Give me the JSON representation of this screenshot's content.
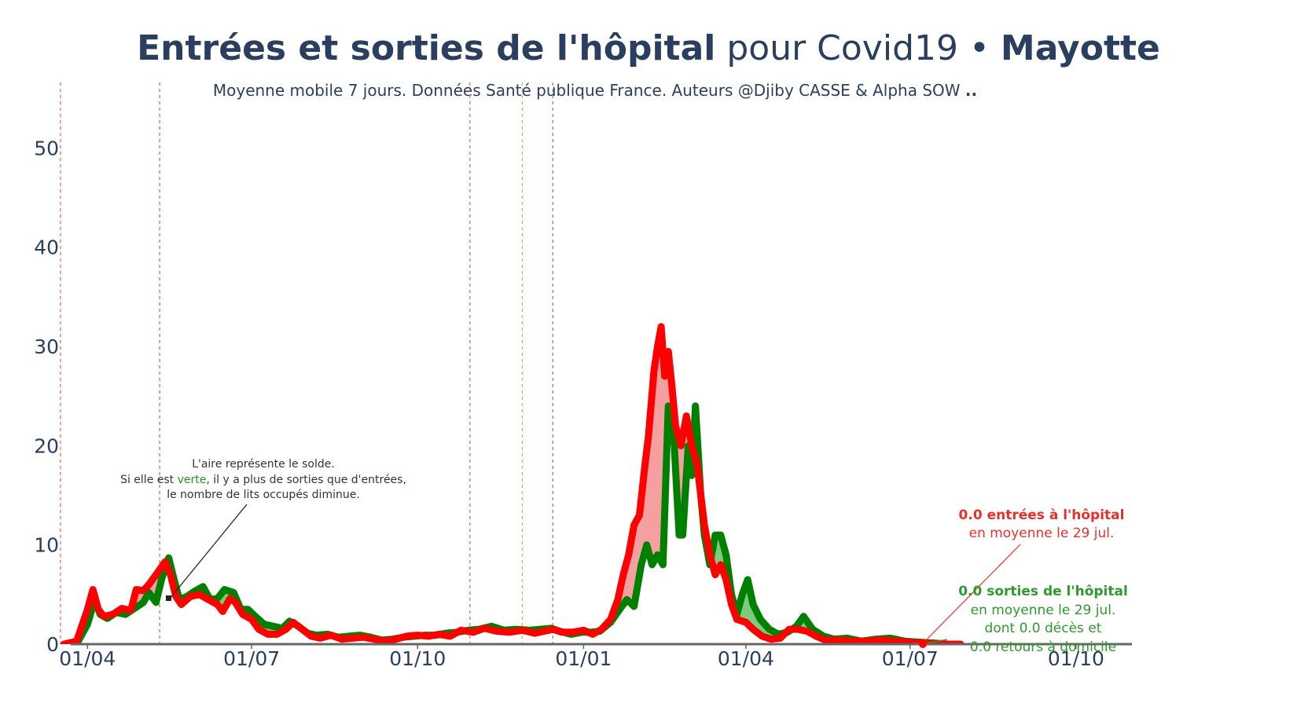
{
  "title": {
    "part1": "Entrées et sorties de l'hôpital",
    "part2": " pour Covid19 • ",
    "part3": "Mayotte"
  },
  "subtitle": {
    "main": "Moyenne mobile 7 jours. Données Santé publique France. Auteurs @Djiby CASSE & Alpha SOW ",
    "suffix": ".."
  },
  "annotation_area": {
    "line1": "L'aire représente le solde.",
    "line2_pre": "Si elle est ",
    "line2_green": "verte",
    "line2_post": ", il y a plus de sorties que d'entrées,",
    "line3": "le nombre de lits occupés diminue."
  },
  "annotation_entries": {
    "bold": "0.0 entrées à l'hôpital",
    "line2": "en moyenne le 29 jul."
  },
  "annotation_exits": {
    "bold": "0.0 sorties de l'hôpital",
    "line2": "en moyenne le 29 jul.",
    "line3": "dont 0.0 décès et",
    "line4": "0.0 retours à domicile"
  },
  "colors": {
    "entries": "#ff0000",
    "exits": "#008000",
    "area_positive": "#f4a0a0",
    "area_negative": "#7ecb7e",
    "text": "#2a3f5f",
    "vline_red": "#e06060",
    "vline_green": "#50a050",
    "vline_orange": "#f0a040"
  },
  "chart_data": {
    "type": "line",
    "x_start": "2020-03-19",
    "x_end": "2021-07-29",
    "x_ticks": [
      {
        "date": "2020-04-01",
        "label": "01/04"
      },
      {
        "date": "2020-07-01",
        "label": "01/07"
      },
      {
        "date": "2020-10-01",
        "label": "01/10"
      },
      {
        "date": "2021-01-01",
        "label": "01/01"
      },
      {
        "date": "2021-04-01",
        "label": "01/04"
      },
      {
        "date": "2021-07-01",
        "label": "01/07"
      },
      {
        "date": "2021-10-01",
        "label": "01/10"
      }
    ],
    "y_ticks": [
      0,
      10,
      20,
      30,
      40,
      50
    ],
    "ylim": [
      0,
      57
    ],
    "xlim": [
      "2020-03-14",
      "2021-11-01"
    ],
    "vertical_lines": [
      {
        "date": "2020-03-17",
        "color": "red"
      },
      {
        "date": "2020-05-11",
        "color": "green"
      },
      {
        "date": "2020-10-30",
        "color": "red"
      },
      {
        "date": "2020-11-28",
        "color": "orange"
      },
      {
        "date": "2020-12-15",
        "color": "green"
      }
    ],
    "series": [
      {
        "name": "entrées à l'hôpital",
        "points": [
          [
            "2020-03-19",
            0
          ],
          [
            "2020-03-26",
            0.3
          ],
          [
            "2020-04-01",
            3.5
          ],
          [
            "2020-04-04",
            5.5
          ],
          [
            "2020-04-07",
            3.5
          ],
          [
            "2020-04-10",
            2.8
          ],
          [
            "2020-04-15",
            3
          ],
          [
            "2020-04-20",
            3.6
          ],
          [
            "2020-04-25",
            3.4
          ],
          [
            "2020-04-28",
            5.5
          ],
          [
            "2020-05-02",
            5.4
          ],
          [
            "2020-05-05",
            6
          ],
          [
            "2020-05-09",
            7
          ],
          [
            "2020-05-14",
            8.3
          ],
          [
            "2020-05-17",
            7
          ],
          [
            "2020-05-20",
            4.8
          ],
          [
            "2020-05-23",
            4
          ],
          [
            "2020-05-28",
            4.8
          ],
          [
            "2020-06-02",
            5
          ],
          [
            "2020-06-07",
            4.5
          ],
          [
            "2020-06-12",
            4
          ],
          [
            "2020-06-15",
            3.3
          ],
          [
            "2020-06-19",
            4.6
          ],
          [
            "2020-06-22",
            4.2
          ],
          [
            "2020-06-26",
            3
          ],
          [
            "2020-07-01",
            2.5
          ],
          [
            "2020-07-05",
            1.5
          ],
          [
            "2020-07-10",
            1
          ],
          [
            "2020-07-15",
            1
          ],
          [
            "2020-07-20",
            1.5
          ],
          [
            "2020-07-24",
            2.2
          ],
          [
            "2020-07-29",
            1.5
          ],
          [
            "2020-08-03",
            0.8
          ],
          [
            "2020-08-08",
            0.6
          ],
          [
            "2020-08-14",
            0.9
          ],
          [
            "2020-08-20",
            0.5
          ],
          [
            "2020-08-26",
            0.6
          ],
          [
            "2020-09-01",
            0.7
          ],
          [
            "2020-09-07",
            0.5
          ],
          [
            "2020-09-13",
            0.3
          ],
          [
            "2020-09-19",
            0.5
          ],
          [
            "2020-09-25",
            0.8
          ],
          [
            "2020-10-01",
            0.9
          ],
          [
            "2020-10-07",
            0.8
          ],
          [
            "2020-10-13",
            1
          ],
          [
            "2020-10-19",
            0.8
          ],
          [
            "2020-10-25",
            1.4
          ],
          [
            "2020-11-01",
            1.2
          ],
          [
            "2020-11-07",
            1.6
          ],
          [
            "2020-11-14",
            1.3
          ],
          [
            "2020-11-21",
            1.2
          ],
          [
            "2020-11-28",
            1.4
          ],
          [
            "2020-12-05",
            1.1
          ],
          [
            "2020-12-10",
            1.3
          ],
          [
            "2020-12-15",
            1.5
          ],
          [
            "2020-12-20",
            1.2
          ],
          [
            "2020-12-26",
            1.2
          ],
          [
            "2021-01-01",
            1.4
          ],
          [
            "2021-01-06",
            1
          ],
          [
            "2021-01-11",
            1.5
          ],
          [
            "2021-01-16",
            2.5
          ],
          [
            "2021-01-20",
            4.5
          ],
          [
            "2021-01-23",
            7
          ],
          [
            "2021-01-26",
            9
          ],
          [
            "2021-01-29",
            12
          ],
          [
            "2021-02-01",
            13
          ],
          [
            "2021-02-04",
            18
          ],
          [
            "2021-02-06",
            21
          ],
          [
            "2021-02-09",
            27.5
          ],
          [
            "2021-02-11",
            30
          ],
          [
            "2021-02-13",
            32
          ],
          [
            "2021-02-15",
            27
          ],
          [
            "2021-02-17",
            29.5
          ],
          [
            "2021-02-19",
            26
          ],
          [
            "2021-02-21",
            22
          ],
          [
            "2021-02-24",
            20
          ],
          [
            "2021-02-27",
            23
          ],
          [
            "2021-03-02",
            20
          ],
          [
            "2021-03-05",
            18
          ],
          [
            "2021-03-09",
            12
          ],
          [
            "2021-03-12",
            9
          ],
          [
            "2021-03-15",
            7
          ],
          [
            "2021-03-18",
            8
          ],
          [
            "2021-03-21",
            6.5
          ],
          [
            "2021-03-24",
            4
          ],
          [
            "2021-03-27",
            2.5
          ],
          [
            "2021-04-01",
            2.2
          ],
          [
            "2021-04-05",
            1.5
          ],
          [
            "2021-04-10",
            0.8
          ],
          [
            "2021-04-15",
            0.5
          ],
          [
            "2021-04-20",
            0.6
          ],
          [
            "2021-04-25",
            1.5
          ],
          [
            "2021-04-30",
            1.5
          ],
          [
            "2021-05-05",
            1.3
          ],
          [
            "2021-05-10",
            0.8
          ],
          [
            "2021-05-15",
            0.4
          ],
          [
            "2021-05-22",
            0.4
          ],
          [
            "2021-05-30",
            0.3
          ],
          [
            "2021-06-07",
            0.3
          ],
          [
            "2021-06-15",
            0.4
          ],
          [
            "2021-06-23",
            0.3
          ],
          [
            "2021-07-01",
            0.2
          ],
          [
            "2021-07-10",
            0.1
          ],
          [
            "2021-07-20",
            0
          ],
          [
            "2021-07-29",
            0
          ]
        ]
      },
      {
        "name": "sorties de l'hôpital",
        "points": [
          [
            "2020-03-19",
            0
          ],
          [
            "2020-03-26",
            0
          ],
          [
            "2020-04-01",
            2
          ],
          [
            "2020-04-05",
            4.5
          ],
          [
            "2020-04-08",
            3
          ],
          [
            "2020-04-12",
            2.6
          ],
          [
            "2020-04-17",
            3.2
          ],
          [
            "2020-04-22",
            3
          ],
          [
            "2020-04-27",
            3.6
          ],
          [
            "2020-05-02",
            4.2
          ],
          [
            "2020-05-05",
            5.2
          ],
          [
            "2020-05-09",
            4.2
          ],
          [
            "2020-05-12",
            6.5
          ],
          [
            "2020-05-16",
            8.7
          ],
          [
            "2020-05-19",
            6.5
          ],
          [
            "2020-05-22",
            4.5
          ],
          [
            "2020-05-26",
            4.8
          ],
          [
            "2020-05-31",
            5.4
          ],
          [
            "2020-06-04",
            5.8
          ],
          [
            "2020-06-08",
            4.5
          ],
          [
            "2020-06-12",
            4.6
          ],
          [
            "2020-06-16",
            5.5
          ],
          [
            "2020-06-21",
            5.2
          ],
          [
            "2020-06-25",
            3.5
          ],
          [
            "2020-06-29",
            3.5
          ],
          [
            "2020-07-03",
            2.8
          ],
          [
            "2020-07-08",
            2
          ],
          [
            "2020-07-13",
            1.8
          ],
          [
            "2020-07-18",
            1.6
          ],
          [
            "2020-07-22",
            2.3
          ],
          [
            "2020-07-27",
            1.8
          ],
          [
            "2020-08-01",
            1.1
          ],
          [
            "2020-08-06",
            0.9
          ],
          [
            "2020-08-12",
            1
          ],
          [
            "2020-08-18",
            0.7
          ],
          [
            "2020-08-24",
            0.8
          ],
          [
            "2020-08-30",
            0.9
          ],
          [
            "2020-09-05",
            0.7
          ],
          [
            "2020-09-11",
            0.4
          ],
          [
            "2020-09-17",
            0.5
          ],
          [
            "2020-09-23",
            0.7
          ],
          [
            "2020-09-29",
            0.8
          ],
          [
            "2020-10-05",
            0.9
          ],
          [
            "2020-10-11",
            0.9
          ],
          [
            "2020-10-17",
            1.1
          ],
          [
            "2020-10-23",
            1.2
          ],
          [
            "2020-10-29",
            1.4
          ],
          [
            "2020-11-04",
            1.5
          ],
          [
            "2020-11-11",
            1.8
          ],
          [
            "2020-11-18",
            1.4
          ],
          [
            "2020-11-25",
            1.5
          ],
          [
            "2020-12-02",
            1.4
          ],
          [
            "2020-12-08",
            1.5
          ],
          [
            "2020-12-14",
            1.6
          ],
          [
            "2020-12-19",
            1.3
          ],
          [
            "2020-12-25",
            1
          ],
          [
            "2020-12-31",
            1.2
          ],
          [
            "2021-01-05",
            1.2
          ],
          [
            "2021-01-10",
            1.3
          ],
          [
            "2021-01-16",
            2.2
          ],
          [
            "2021-01-21",
            3.5
          ],
          [
            "2021-01-25",
            4.5
          ],
          [
            "2021-01-29",
            3.8
          ],
          [
            "2021-02-02",
            8
          ],
          [
            "2021-02-05",
            10
          ],
          [
            "2021-02-08",
            8
          ],
          [
            "2021-02-11",
            9
          ],
          [
            "2021-02-14",
            8
          ],
          [
            "2021-02-17",
            24
          ],
          [
            "2021-02-20",
            21
          ],
          [
            "2021-02-23",
            11
          ],
          [
            "2021-02-25",
            11
          ],
          [
            "2021-02-28",
            20
          ],
          [
            "2021-03-02",
            17
          ],
          [
            "2021-03-04",
            24
          ],
          [
            "2021-03-07",
            15
          ],
          [
            "2021-03-09",
            11
          ],
          [
            "2021-03-12",
            8
          ],
          [
            "2021-03-15",
            11
          ],
          [
            "2021-03-18",
            11
          ],
          [
            "2021-03-21",
            9
          ],
          [
            "2021-03-24",
            5
          ],
          [
            "2021-03-27",
            3
          ],
          [
            "2021-03-30",
            5
          ],
          [
            "2021-04-02",
            6.5
          ],
          [
            "2021-04-05",
            4
          ],
          [
            "2021-04-09",
            2.5
          ],
          [
            "2021-04-14",
            1.5
          ],
          [
            "2021-04-19",
            1
          ],
          [
            "2021-04-24",
            1.2
          ],
          [
            "2021-04-29",
            1.8
          ],
          [
            "2021-05-03",
            2.8
          ],
          [
            "2021-05-08",
            1.5
          ],
          [
            "2021-05-14",
            0.8
          ],
          [
            "2021-05-20",
            0.5
          ],
          [
            "2021-05-27",
            0.6
          ],
          [
            "2021-06-04",
            0.3
          ],
          [
            "2021-06-12",
            0.5
          ],
          [
            "2021-06-20",
            0.6
          ],
          [
            "2021-06-28",
            0.3
          ],
          [
            "2021-07-06",
            0.2
          ],
          [
            "2021-07-15",
            0.1
          ],
          [
            "2021-07-22",
            0
          ],
          [
            "2021-07-29",
            0
          ]
        ]
      }
    ]
  }
}
